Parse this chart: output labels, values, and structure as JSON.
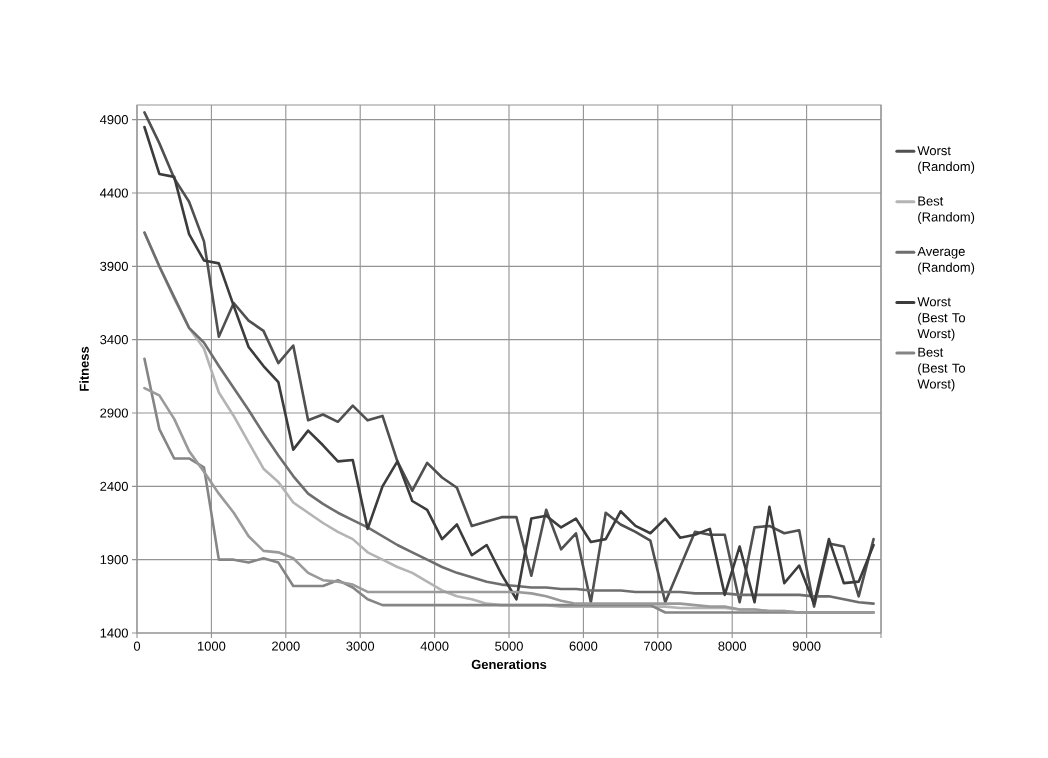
{
  "chart_data": {
    "type": "line",
    "xlabel": "Generations",
    "ylabel": "Fitness",
    "x": [
      100,
      300,
      500,
      700,
      900,
      1100,
      1300,
      1500,
      1700,
      1900,
      2100,
      2300,
      2500,
      2700,
      2900,
      3100,
      3300,
      3500,
      3700,
      3900,
      4100,
      4300,
      4500,
      4700,
      4900,
      5100,
      5300,
      5500,
      5700,
      5900,
      6100,
      6300,
      6500,
      6700,
      6900,
      7100,
      7300,
      7500,
      7700,
      7900,
      8100,
      8300,
      8500,
      8700,
      8900,
      9100,
      9300,
      9500,
      9700,
      9900
    ],
    "xlim": [
      0,
      10000
    ],
    "xticks": [
      0,
      1000,
      2000,
      3000,
      4000,
      5000,
      6000,
      7000,
      8000,
      9000,
      {
        "value": 10000,
        "label": null
      }
    ],
    "ylim": [
      1400,
      5000
    ],
    "yticks": [
      1400,
      1900,
      2400,
      2900,
      3400,
      3900,
      4400,
      4900
    ],
    "grid": true,
    "legend": "right",
    "marker": "none",
    "line_style": "solid",
    "series": [
      {
        "name": "Worst (Random)",
        "color": "#505050",
        "values": [
          4950,
          4740,
          4500,
          4340,
          4070,
          3420,
          3650,
          3530,
          3460,
          3240,
          3360,
          2850,
          2890,
          2840,
          2950,
          2850,
          2880,
          2570,
          2370,
          2560,
          2460,
          2390,
          2130,
          2160,
          2190,
          2190,
          1790,
          2240,
          1970,
          2080,
          1610,
          2220,
          2140,
          2090,
          2030,
          1610,
          1850,
          2090,
          2070,
          2070,
          1610,
          2120,
          2130,
          2080,
          2100,
          1580,
          2010,
          1990,
          1650,
          2040
        ]
      },
      {
        "name": "Best (Random)",
        "color": "#b4b4b4",
        "values": [
          4130,
          3900,
          3680,
          3480,
          3340,
          3040,
          2880,
          2700,
          2520,
          2430,
          2290,
          2220,
          2150,
          2090,
          2040,
          1950,
          1900,
          1850,
          1810,
          1750,
          1690,
          1650,
          1630,
          1600,
          1590,
          1590,
          1590,
          1590,
          1580,
          1580,
          1580,
          1580,
          1580,
          1580,
          1580,
          1580,
          1570,
          1570,
          1570,
          1570,
          1560,
          1560,
          1550,
          1550,
          1540,
          1540,
          1540,
          1540,
          1540,
          1540
        ]
      },
      {
        "name": "Average (Random)",
        "color": "#6e6e6e",
        "values": [
          4130,
          3900,
          3690,
          3480,
          3380,
          3220,
          3070,
          2920,
          2760,
          2610,
          2470,
          2350,
          2280,
          2220,
          2170,
          2120,
          2060,
          2000,
          1950,
          1900,
          1850,
          1810,
          1780,
          1750,
          1730,
          1720,
          1710,
          1710,
          1700,
          1700,
          1690,
          1690,
          1690,
          1680,
          1680,
          1680,
          1680,
          1670,
          1670,
          1670,
          1660,
          1660,
          1660,
          1660,
          1660,
          1650,
          1650,
          1630,
          1610,
          1600
        ]
      },
      {
        "name": "Worst (Best To Worst)",
        "color": "#3c3c3c",
        "values": [
          4850,
          4530,
          4510,
          4120,
          3940,
          3920,
          3630,
          3350,
          3220,
          3110,
          2650,
          2780,
          2680,
          2570,
          2580,
          2110,
          2400,
          2570,
          2300,
          2240,
          2040,
          2140,
          1930,
          2000,
          1800,
          1630,
          2180,
          2200,
          2120,
          2180,
          2020,
          2040,
          2230,
          2130,
          2080,
          2180,
          2050,
          2070,
          2110,
          1660,
          1990,
          1610,
          2260,
          1740,
          1860,
          1600,
          2040,
          1740,
          1750,
          2000
        ]
      },
      {
        "name": "Best (Best To Worst)",
        "color": "#858585",
        "values": [
          3270,
          2790,
          2590,
          2590,
          2530,
          1900,
          1900,
          1880,
          1910,
          1880,
          1720,
          1720,
          1720,
          1760,
          1710,
          1630,
          1590,
          1590,
          1590,
          1590,
          1590,
          1590,
          1590,
          1590,
          1590,
          1590,
          1590,
          1590,
          1590,
          1590,
          1590,
          1590,
          1590,
          1590,
          1590,
          1540,
          1540,
          1540,
          1540,
          1540,
          1540,
          1540,
          1540,
          1540,
          1540,
          1540,
          1540,
          1540,
          1540,
          1540
        ]
      },
      {
        "color": "#9a9a9a",
        "values": [
          3070,
          3020,
          2860,
          2640,
          2500,
          2350,
          2220,
          2060,
          1960,
          1950,
          1910,
          1810,
          1760,
          1750,
          1730,
          1680,
          1680,
          1680,
          1680,
          1680,
          1680,
          1680,
          1680,
          1680,
          1680,
          1680,
          1670,
          1650,
          1620,
          1600,
          1600,
          1600,
          1600,
          1600,
          1600,
          1600,
          1600,
          1590,
          1580,
          1580,
          1560,
          1560,
          1550,
          1550,
          1540,
          1540,
          1540,
          1540,
          1540,
          1540
        ]
      }
    ]
  }
}
